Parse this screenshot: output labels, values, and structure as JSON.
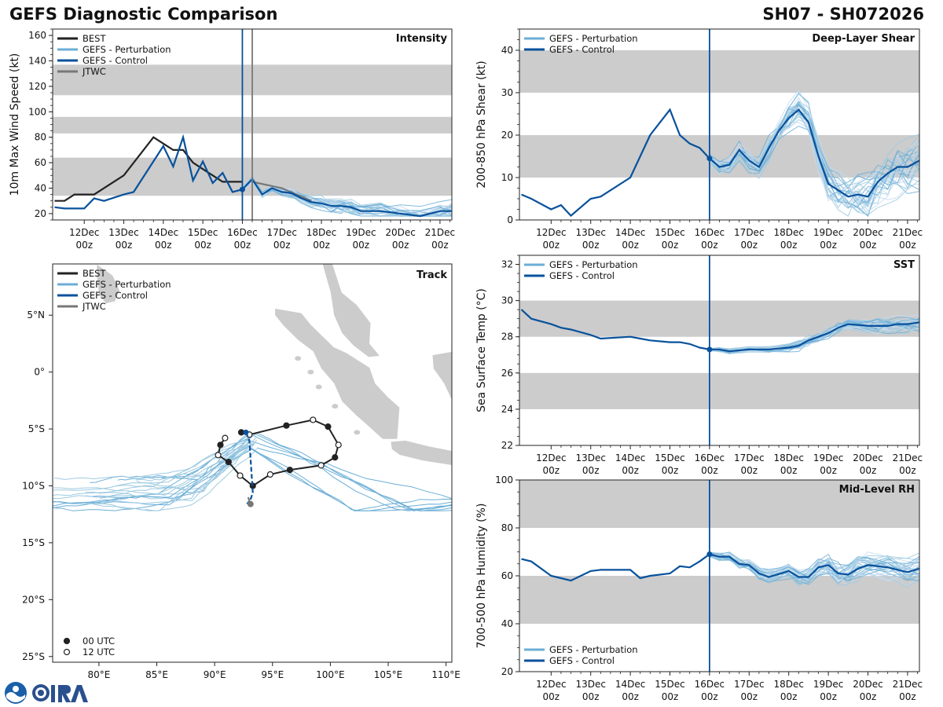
{
  "header": {
    "title_left": "GEFS Diagnostic Comparison",
    "title_right": "SH07 - SH072026"
  },
  "colors": {
    "best": "#222222",
    "perturbation": "#6baed6",
    "control": "#08519c",
    "jtwc": "#777777",
    "band": "#cccccc",
    "land": "#cccccc"
  },
  "time_ticks": [
    "12Dec 00z",
    "13Dec 00z",
    "14Dec 00z",
    "15Dec 00z",
    "16Dec 00z",
    "17Dec 00z",
    "18Dec 00z",
    "19Dec 00z",
    "20Dec 00z",
    "21Dec 00z"
  ],
  "chart_data": [
    {
      "id": "intensity",
      "type": "line",
      "title": "Intensity",
      "ylabel": "10m Max Wind Speed (kt)",
      "ylim": [
        15,
        165
      ],
      "yticks": [
        20,
        40,
        60,
        80,
        100,
        120,
        140,
        160
      ],
      "xlim": [
        -4.8,
        5.3
      ],
      "bands": [
        [
          34,
          64
        ],
        [
          83,
          96
        ],
        [
          113,
          137
        ]
      ],
      "init_line": 0.0,
      "jtwc_line": 0.25,
      "legend": [
        "BEST",
        "GEFS - Perturbation",
        "GEFS - Control",
        "JTWC"
      ],
      "best": {
        "x": [
          -4.75,
          -4.5,
          -4.25,
          -3.75,
          -3.0,
          -2.25,
          -2.0,
          -1.75,
          -1.5,
          -1.25,
          -1.0,
          -0.75,
          -0.5,
          -0.25,
          0.0
        ],
        "y": [
          30,
          30,
          35,
          35,
          50,
          80,
          75,
          70,
          70,
          60,
          55,
          50,
          45,
          45,
          45
        ]
      },
      "control": {
        "x": [
          -4.75,
          -4.5,
          -4.0,
          -3.75,
          -3.5,
          -3.0,
          -2.75,
          -2.0,
          -1.75,
          -1.5,
          -1.25,
          -1.0,
          -0.75,
          -0.5,
          -0.25,
          0.0,
          0.25,
          0.5,
          0.75,
          1.0,
          1.25,
          1.5,
          1.75,
          2.0,
          2.25,
          2.5,
          2.75,
          3.0,
          3.5,
          4.0,
          4.5,
          5.0,
          5.3
        ],
        "y": [
          25,
          24,
          24,
          32,
          30,
          35,
          37,
          73,
          57,
          80,
          46,
          61,
          44,
          52,
          37,
          39,
          47,
          35,
          40,
          37,
          36,
          32,
          29,
          28,
          26,
          26,
          25,
          22,
          22,
          20,
          18,
          22,
          22
        ]
      },
      "jtwc": {
        "x": [
          0.25,
          1.0,
          1.75
        ],
        "y": [
          45,
          40,
          30
        ]
      }
    },
    {
      "id": "shear",
      "type": "line",
      "title": "Deep-Layer Shear",
      "ylabel": "200-850 hPa Shear (kt)",
      "ylim": [
        0,
        45
      ],
      "yticks": [
        0,
        10,
        20,
        30,
        40
      ],
      "xlim": [
        -4.8,
        5.3
      ],
      "bands": [
        [
          10,
          20
        ],
        [
          30,
          40
        ]
      ],
      "init_line": 0.0,
      "legend": [
        "GEFS - Perturbation",
        "GEFS - Control"
      ],
      "control": {
        "x": [
          -4.75,
          -4.5,
          -4.0,
          -3.75,
          -3.5,
          -3.0,
          -2.75,
          -2.0,
          -1.75,
          -1.5,
          -1.0,
          -0.75,
          -0.5,
          -0.25,
          0.0,
          0.25,
          0.5,
          0.75,
          1.0,
          1.25,
          1.5,
          1.75,
          2.0,
          2.25,
          2.5,
          2.75,
          3.0,
          3.25,
          3.5,
          3.75,
          4.0,
          4.25,
          4.5,
          4.75,
          5.0,
          5.3
        ],
        "y": [
          6,
          5,
          2.5,
          3.5,
          1,
          5,
          5.5,
          10,
          15,
          20,
          26,
          20,
          18,
          17,
          14.5,
          12.5,
          13,
          16.5,
          14,
          12.5,
          17,
          21,
          24,
          26,
          23,
          15,
          8.5,
          7,
          5.5,
          6,
          5.5,
          9,
          11,
          12.5,
          12.5,
          14
        ]
      }
    },
    {
      "id": "sst",
      "type": "line",
      "title": "SST",
      "ylabel": "Sea Surface Temp (°C)",
      "ylim": [
        22,
        32.5
      ],
      "yticks": [
        22,
        24,
        26,
        28,
        30,
        32
      ],
      "xlim": [
        -4.8,
        5.3
      ],
      "bands": [
        [
          24,
          26
        ],
        [
          28,
          30
        ]
      ],
      "init_line": 0.0,
      "legend": [
        "GEFS - Perturbation",
        "GEFS - Control"
      ],
      "control": {
        "x": [
          -4.75,
          -4.5,
          -4.0,
          -3.75,
          -3.5,
          -3.0,
          -2.75,
          -2.0,
          -1.75,
          -1.5,
          -1.0,
          -0.75,
          -0.5,
          -0.25,
          0.0,
          0.25,
          0.5,
          1.0,
          1.5,
          2.0,
          2.25,
          2.5,
          2.75,
          3.0,
          3.25,
          3.5,
          4.0,
          4.25,
          4.5,
          4.75,
          5.0,
          5.3
        ],
        "y": [
          29.5,
          29.0,
          28.7,
          28.5,
          28.4,
          28.1,
          27.9,
          28.0,
          27.9,
          27.8,
          27.7,
          27.7,
          27.6,
          27.4,
          27.3,
          27.3,
          27.2,
          27.3,
          27.3,
          27.4,
          27.5,
          27.8,
          28.0,
          28.2,
          28.5,
          28.7,
          28.6,
          28.6,
          28.6,
          28.7,
          28.7,
          28.8
        ]
      }
    },
    {
      "id": "rh",
      "type": "line",
      "title": "Mid-Level RH",
      "ylabel": "700-500 hPa Humidity (%)",
      "ylim": [
        20,
        100
      ],
      "yticks": [
        20,
        40,
        60,
        80,
        100
      ],
      "xlim": [
        -4.8,
        5.3
      ],
      "bands": [
        [
          40,
          60
        ],
        [
          80,
          100
        ]
      ],
      "init_line": 0.0,
      "legend": [
        "GEFS - Perturbation",
        "GEFS - Control"
      ],
      "control": {
        "x": [
          -4.75,
          -4.5,
          -4.0,
          -3.75,
          -3.5,
          -3.0,
          -2.75,
          -2.0,
          -1.75,
          -1.5,
          -1.0,
          -0.75,
          -0.5,
          -0.25,
          0.0,
          0.25,
          0.5,
          0.75,
          1.0,
          1.25,
          1.5,
          2.0,
          2.25,
          2.5,
          2.75,
          3.0,
          3.25,
          3.5,
          3.75,
          4.0,
          4.5,
          5.0,
          5.3
        ],
        "y": [
          67,
          66,
          60,
          59,
          58,
          62,
          62.5,
          62.5,
          59,
          60,
          61,
          64,
          63.5,
          66,
          69,
          68,
          68,
          65,
          64.5,
          61,
          59.5,
          62,
          59.5,
          59.5,
          63.5,
          64.5,
          61,
          60.5,
          63,
          64.5,
          63.5,
          61.5,
          63
        ]
      }
    },
    {
      "id": "track",
      "type": "scatter",
      "title": "Track",
      "lon_range": [
        76,
        110.5
      ],
      "lat_range": [
        -25.5,
        9.5
      ],
      "xticks": [
        80,
        85,
        90,
        95,
        100,
        105,
        110
      ],
      "xtick_labels": [
        "80°E",
        "85°E",
        "90°E",
        "95°E",
        "100°E",
        "105°E",
        "110°E"
      ],
      "yticks": [
        5,
        0,
        -5,
        -10,
        -15,
        -20,
        -25
      ],
      "ytick_labels": [
        "5°N",
        "0°",
        "5°S",
        "10°S",
        "15°S",
        "20°S",
        "25°S"
      ],
      "legend": [
        "BEST",
        "GEFS - Perturbation",
        "GEFS - Control",
        "JTWC"
      ],
      "marker_legend": [
        "00 UTC",
        "12 UTC"
      ],
      "best": {
        "lon": [
          92.3,
          93.0,
          96.2,
          98.5,
          99.8,
          100.7,
          100.4,
          99.2,
          96.5,
          94.8,
          93.3,
          92.2,
          91.2,
          90.3,
          90.5,
          90.9
        ],
        "lat": [
          -5.3,
          -5.5,
          -4.7,
          -4.2,
          -4.8,
          -6.4,
          -7.5,
          -8.2,
          -8.6,
          -9.0,
          -10.0,
          -9.1,
          -7.9,
          -7.3,
          -6.4,
          -5.8
        ]
      },
      "control": {
        "lon": [
          92.7,
          93.0,
          93.3,
          93.1,
          92.8
        ],
        "lat": [
          -5.3,
          -6.0,
          -10.6,
          -11.2,
          -11.6
        ]
      },
      "jtwc": {
        "lon": [
          92.9,
          93.1
        ],
        "lat": [
          -11.0,
          -11.6
        ]
      }
    }
  ],
  "logos": {
    "noaa": "NOAA",
    "cira": "CIRA"
  }
}
